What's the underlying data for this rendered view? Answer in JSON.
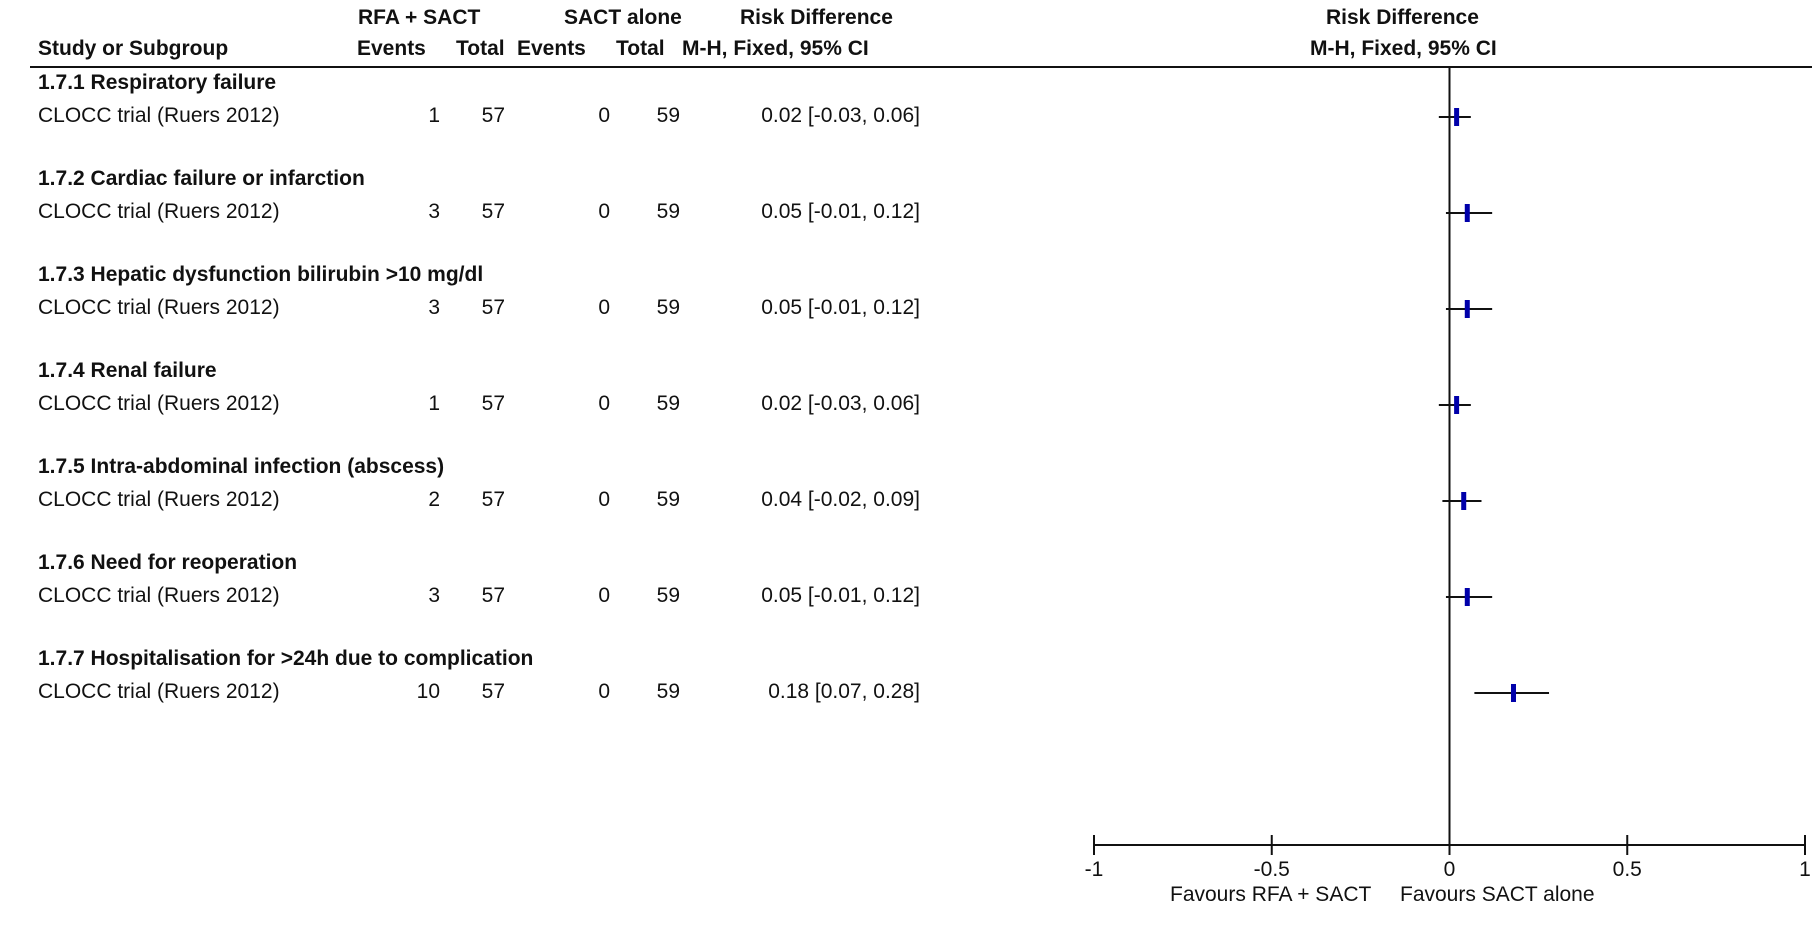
{
  "header": {
    "group1": "RFA + SACT",
    "group2": "SACT alone",
    "rd_left": "Risk Difference",
    "rd_right": "Risk Difference",
    "study_col": "Study or Subgroup",
    "events1": "Events",
    "total1": "Total",
    "events2": "Events",
    "total2": "Total",
    "method_left": "M-H, Fixed, 95% CI",
    "method_right": "M-H, Fixed, 95% CI"
  },
  "subgroups": [
    {
      "title": "1.7.1 Respiratory failure",
      "study": "CLOCC trial (Ruers 2012)",
      "e1": "1",
      "t1": "57",
      "e2": "0",
      "t2": "59",
      "ci": "0.02 [-0.03, 0.06]"
    },
    {
      "title": "1.7.2 Cardiac failure or infarction",
      "study": "CLOCC trial (Ruers 2012)",
      "e1": "3",
      "t1": "57",
      "e2": "0",
      "t2": "59",
      "ci": "0.05 [-0.01, 0.12]"
    },
    {
      "title": "1.7.3 Hepatic dysfunction bilirubin >10 mg/dl",
      "study": "CLOCC trial (Ruers 2012)",
      "e1": "3",
      "t1": "57",
      "e2": "0",
      "t2": "59",
      "ci": "0.05 [-0.01, 0.12]"
    },
    {
      "title": "1.7.4 Renal failure",
      "study": "CLOCC trial (Ruers 2012)",
      "e1": "1",
      "t1": "57",
      "e2": "0",
      "t2": "59",
      "ci": "0.02 [-0.03, 0.06]"
    },
    {
      "title": "1.7.5 Intra-abdominal infection (abscess)",
      "study": "CLOCC trial (Ruers 2012)",
      "e1": "2",
      "t1": "57",
      "e2": "0",
      "t2": "59",
      "ci": "0.04 [-0.02, 0.09]"
    },
    {
      "title": "1.7.6 Need for reoperation",
      "study": "CLOCC trial (Ruers 2012)",
      "e1": "3",
      "t1": "57",
      "e2": "0",
      "t2": "59",
      "ci": "0.05 [-0.01, 0.12]"
    },
    {
      "title": "1.7.7 Hospitalisation for >24h due to complication",
      "study": "CLOCC trial (Ruers 2012)",
      "e1": "10",
      "t1": "57",
      "e2": "0",
      "t2": "59",
      "ci": "0.18 [0.07, 0.28]"
    }
  ],
  "chart_data": {
    "type": "forest",
    "xlim": [
      -1,
      1
    ],
    "ticks": [
      "-1",
      "-0.5",
      "0",
      "0.5",
      "1"
    ],
    "tick_values": [
      -1,
      -0.5,
      0,
      0.5,
      1
    ],
    "favours_left": "Favours RFA + SACT",
    "favours_right": "Favours SACT alone",
    "marker_color": "#0000aa",
    "points": [
      {
        "estimate": 0.02,
        "lower": -0.03,
        "upper": 0.06
      },
      {
        "estimate": 0.05,
        "lower": -0.01,
        "upper": 0.12
      },
      {
        "estimate": 0.05,
        "lower": -0.01,
        "upper": 0.12
      },
      {
        "estimate": 0.02,
        "lower": -0.03,
        "upper": 0.06
      },
      {
        "estimate": 0.04,
        "lower": -0.02,
        "upper": 0.09
      },
      {
        "estimate": 0.05,
        "lower": -0.01,
        "upper": 0.12
      },
      {
        "estimate": 0.18,
        "lower": 0.07,
        "upper": 0.28
      }
    ]
  }
}
